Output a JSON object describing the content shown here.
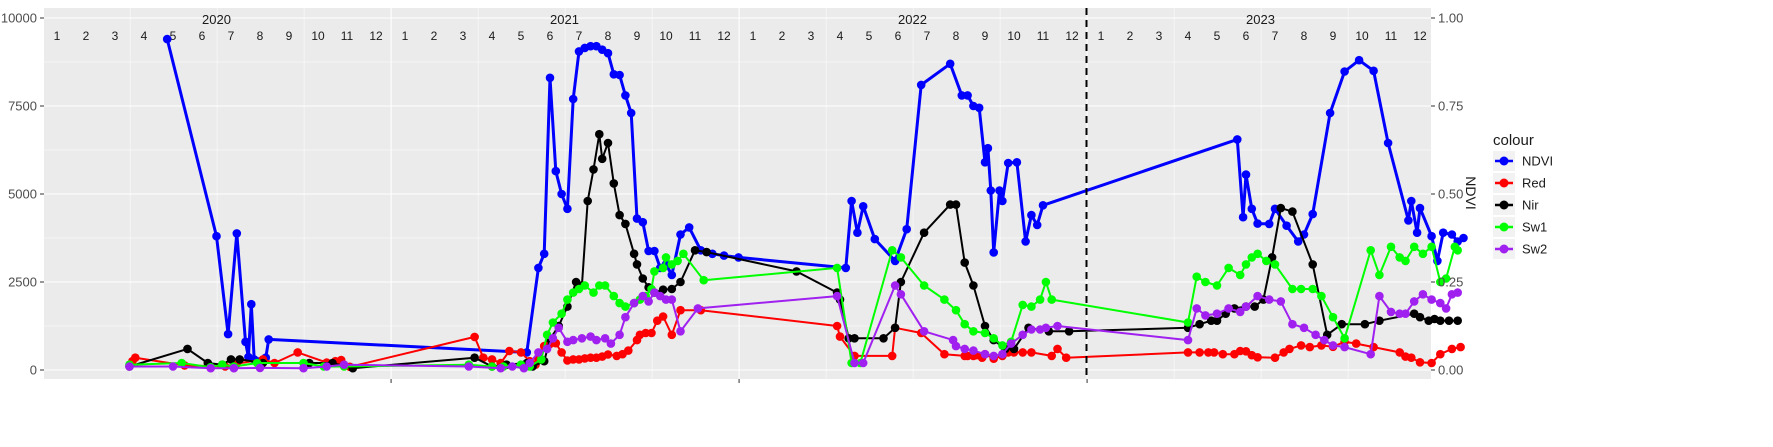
{
  "chart_data": {
    "type": "line",
    "title": "",
    "xlabel": "",
    "ylabel": "",
    "y2label": "NDVI",
    "ylim": [
      0,
      10000
    ],
    "y2lim": [
      0,
      1
    ],
    "yticks": [
      "0",
      "2500",
      "5000",
      "7500",
      "10000"
    ],
    "y2ticks": [
      "0.00",
      "0.25",
      "0.50",
      "0.75",
      "1.00"
    ],
    "grid": true,
    "legend_title": "colour",
    "legend_position": "right",
    "years": [
      "2020",
      "2021",
      "2022",
      "2023"
    ],
    "month_labels": [
      "1",
      "2",
      "3",
      "4",
      "5",
      "6",
      "7",
      "8",
      "9",
      "10",
      "11",
      "12"
    ],
    "vline_x": 36.0,
    "series": [
      {
        "name": "NDVI",
        "color": "#0000FF",
        "x": [
          4.8,
          6.5,
          6.9,
          7.2,
          7.5,
          7.6,
          7.7,
          7.8,
          8.2,
          8.3,
          17.2,
          17.6,
          17.8,
          18.0,
          18.2,
          18.4,
          18.6,
          18.8,
          19.0,
          19.2,
          19.4,
          19.6,
          19.8,
          20.0,
          20.2,
          20.4,
          20.6,
          20.8,
          21.0,
          21.2,
          21.4,
          21.6,
          21.8,
          22.0,
          22.2,
          22.5,
          22.8,
          23.2,
          23.6,
          24.0,
          24.5,
          28.2,
          28.4,
          28.6,
          28.8,
          29.2,
          29.9,
          30.3,
          30.8,
          31.8,
          32.2,
          32.4,
          32.6,
          32.8,
          33.0,
          33.1,
          33.2,
          33.3,
          33.5,
          33.6,
          33.8,
          34.1,
          34.4,
          34.6,
          34.8,
          35.0,
          41.7,
          41.9,
          42.0,
          42.2,
          42.4,
          42.8,
          43.0,
          43.4,
          43.8,
          44.0,
          44.3,
          44.9,
          45.4,
          45.9,
          46.4,
          46.9,
          47.6,
          47.7,
          47.9,
          48.0,
          48.4,
          48.6,
          48.8,
          49.1,
          49.3,
          49.5
        ],
        "values": [
          0.94,
          0.38,
          0.102,
          0.388,
          0.08,
          0.037,
          0.187,
          0.03,
          0.035,
          0.087,
          0.05,
          0.29,
          0.33,
          0.83,
          0.565,
          0.5,
          0.458,
          0.77,
          0.905,
          0.915,
          0.92,
          0.92,
          0.91,
          0.9,
          0.84,
          0.838,
          0.78,
          0.73,
          0.43,
          0.42,
          0.338,
          0.338,
          0.29,
          0.3,
          0.27,
          0.385,
          0.405,
          0.34,
          0.33,
          0.325,
          0.32,
          0.29,
          0.48,
          0.39,
          0.465,
          0.372,
          0.31,
          0.4,
          0.81,
          0.87,
          0.78,
          0.78,
          0.75,
          0.745,
          0.59,
          0.63,
          0.51,
          0.334,
          0.51,
          0.48,
          0.588,
          0.59,
          0.365,
          0.44,
          0.412,
          0.468,
          0.655,
          0.434,
          0.555,
          0.458,
          0.416,
          0.415,
          0.458,
          0.41,
          0.365,
          0.385,
          0.443,
          0.73,
          0.848,
          0.88,
          0.85,
          0.645,
          0.425,
          0.48,
          0.39,
          0.46,
          0.38,
          0.31,
          0.39,
          0.385,
          0.365,
          0.375
        ]
      },
      {
        "name": "Red",
        "color": "#FF0000",
        "x": [
          3.6,
          3.7,
          5.4,
          6.8,
          7.2,
          8.1,
          8.5,
          9.3,
          10.3,
          10.6,
          10.8,
          11.1,
          15.4,
          15.7,
          16.0,
          16.3,
          16.6,
          17.0,
          17.3,
          17.5,
          17.6,
          17.8,
          18.0,
          18.2,
          18.4,
          18.6,
          18.8,
          19.0,
          19.2,
          19.4,
          19.6,
          19.8,
          20.0,
          20.3,
          20.5,
          20.7,
          21.0,
          21.1,
          21.3,
          21.5,
          21.7,
          21.9,
          22.2,
          22.5,
          23.2,
          27.9,
          28.0,
          28.5,
          29.8,
          29.9,
          30.8,
          31.6,
          32.3,
          32.4,
          32.6,
          32.7,
          32.9,
          33.0,
          33.3,
          33.6,
          33.8,
          34.0,
          34.3,
          34.6,
          35.3,
          35.5,
          35.8,
          40.0,
          40.4,
          40.7,
          40.9,
          41.2,
          41.6,
          41.8,
          42.0,
          42.2,
          42.4,
          43.0,
          43.3,
          43.5,
          43.9,
          44.2,
          44.6,
          45.0,
          45.4,
          45.8,
          46.4,
          47.3,
          47.5,
          47.7,
          48.0,
          48.4,
          48.7,
          49.1,
          49.4
        ],
        "values": [
          0.025,
          0.035,
          0.013,
          0.01,
          0.018,
          0.03,
          0.02,
          0.05,
          0.021,
          0.025,
          0.028,
          0.009,
          0.094,
          0.035,
          0.03,
          0.02,
          0.054,
          0.05,
          0.025,
          0.015,
          0.03,
          0.068,
          0.074,
          0.076,
          0.05,
          0.027,
          0.03,
          0.03,
          0.033,
          0.035,
          0.035,
          0.038,
          0.044,
          0.04,
          0.045,
          0.055,
          0.085,
          0.1,
          0.105,
          0.105,
          0.14,
          0.152,
          0.1,
          0.17,
          0.17,
          0.125,
          0.095,
          0.04,
          0.04,
          0.12,
          0.105,
          0.045,
          0.04,
          0.04,
          0.04,
          0.042,
          0.035,
          0.045,
          0.032,
          0.04,
          0.05,
          0.05,
          0.05,
          0.05,
          0.04,
          0.06,
          0.035,
          0.05,
          0.05,
          0.05,
          0.05,
          0.045,
          0.045,
          0.054,
          0.053,
          0.042,
          0.036,
          0.035,
          0.05,
          0.06,
          0.07,
          0.065,
          0.07,
          0.066,
          0.08,
          0.075,
          0.065,
          0.05,
          0.038,
          0.035,
          0.022,
          0.02,
          0.045,
          0.06,
          0.065
        ]
      },
      {
        "name": "Nir",
        "color": "#000000",
        "x": [
          3.5,
          5.5,
          6.2,
          6.7,
          7.0,
          7.3,
          8.1,
          9.7,
          10.5,
          11.2,
          15.4,
          16.0,
          16.5,
          17.2,
          17.4,
          17.8,
          18.0,
          18.3,
          18.6,
          18.9,
          19.1,
          19.3,
          19.5,
          19.7,
          19.8,
          20.0,
          20.2,
          20.4,
          20.6,
          20.9,
          21.0,
          21.2,
          21.4,
          21.6,
          21.9,
          22.2,
          22.5,
          23.0,
          23.4,
          26.5,
          27.9,
          28.0,
          28.3,
          28.5,
          29.5,
          29.9,
          30.1,
          30.9,
          31.8,
          32.0,
          32.3,
          32.6,
          33.0,
          33.3,
          33.7,
          34.0,
          34.5,
          35.2,
          35.9,
          40.0,
          40.4,
          40.8,
          41.0,
          41.3,
          41.6,
          42.0,
          42.3,
          42.6,
          42.9,
          43.2,
          43.6,
          44.3,
          44.8,
          45.3,
          46.1,
          46.6,
          47.8,
          48.0,
          48.3,
          48.5,
          48.7,
          49.0,
          49.3
        ],
        "values": [
          0.01,
          0.06,
          0.02,
          0.015,
          0.03,
          0.03,
          0.02,
          0.02,
          0.02,
          0.005,
          0.035,
          0.01,
          0.015,
          0.02,
          0.01,
          0.025,
          0.088,
          0.125,
          0.18,
          0.25,
          0.24,
          0.48,
          0.57,
          0.67,
          0.6,
          0.645,
          0.53,
          0.44,
          0.415,
          0.33,
          0.3,
          0.26,
          0.235,
          0.22,
          0.228,
          0.23,
          0.25,
          0.34,
          0.335,
          0.28,
          0.22,
          0.2,
          0.09,
          0.09,
          0.09,
          0.12,
          0.25,
          0.39,
          0.47,
          0.47,
          0.305,
          0.24,
          0.125,
          0.085,
          0.06,
          0.06,
          0.12,
          0.11,
          0.11,
          0.12,
          0.13,
          0.14,
          0.14,
          0.16,
          0.175,
          0.18,
          0.18,
          0.2,
          0.32,
          0.46,
          0.45,
          0.3,
          0.1,
          0.13,
          0.13,
          0.14,
          0.16,
          0.15,
          0.14,
          0.145,
          0.14,
          0.14,
          0.14
        ],
        "omit_scatter": true
      },
      {
        "name": "Sw1",
        "color": "#00FF00",
        "x": [
          3.5,
          5.3,
          6.3,
          6.7,
          7.1,
          7.9,
          9.5,
          10.2,
          10.9,
          15.2,
          16.0,
          16.4,
          17.0,
          17.3,
          17.7,
          17.9,
          18.1,
          18.4,
          18.6,
          18.8,
          19.0,
          19.2,
          19.5,
          19.7,
          19.9,
          20.2,
          20.4,
          20.6,
          20.9,
          21.1,
          21.3,
          21.5,
          21.6,
          21.9,
          22.0,
          22.2,
          22.4,
          22.6,
          23.3,
          27.9,
          28.4,
          28.7,
          29.8,
          30.1,
          30.9,
          31.6,
          32.0,
          32.3,
          32.6,
          33.0,
          33.3,
          33.6,
          33.9,
          34.3,
          34.6,
          34.9,
          35.1,
          35.3,
          40.0,
          40.3,
          40.6,
          41.0,
          41.4,
          41.8,
          42.0,
          42.2,
          42.4,
          42.7,
          43.0,
          43.6,
          43.9,
          44.3,
          44.6,
          45.0,
          45.4,
          46.3,
          46.6,
          47.0,
          47.3,
          47.5,
          47.8,
          48.1,
          48.4,
          48.7,
          48.9,
          49.2,
          49.3
        ],
        "values": [
          0.015,
          0.02,
          0.008,
          0.015,
          0.01,
          0.02,
          0.02,
          0.01,
          0.01,
          0.015,
          0.01,
          0.01,
          0.015,
          0.01,
          0.03,
          0.1,
          0.135,
          0.16,
          0.2,
          0.22,
          0.23,
          0.24,
          0.22,
          0.24,
          0.24,
          0.21,
          0.19,
          0.18,
          0.19,
          0.2,
          0.21,
          0.23,
          0.28,
          0.29,
          0.32,
          0.3,
          0.31,
          0.33,
          0.255,
          0.29,
          0.02,
          0.02,
          0.34,
          0.32,
          0.24,
          0.2,
          0.17,
          0.13,
          0.11,
          0.105,
          0.09,
          0.07,
          0.08,
          0.185,
          0.18,
          0.2,
          0.25,
          0.2,
          0.135,
          0.265,
          0.25,
          0.24,
          0.29,
          0.27,
          0.3,
          0.32,
          0.33,
          0.31,
          0.3,
          0.23,
          0.23,
          0.23,
          0.21,
          0.15,
          0.09,
          0.34,
          0.27,
          0.35,
          0.32,
          0.31,
          0.35,
          0.33,
          0.35,
          0.25,
          0.26,
          0.35,
          0.34
        ],
        "omit_scatter": true
      },
      {
        "name": "Sw2",
        "color": "#A020F0",
        "x": [
          3.5,
          5.0,
          6.3,
          7.1,
          8.0,
          9.5,
          10.3,
          10.9,
          15.2,
          16.3,
          16.7,
          17.1,
          17.3,
          17.6,
          17.9,
          18.1,
          18.3,
          18.6,
          18.8,
          19.1,
          19.4,
          19.6,
          19.9,
          20.1,
          20.4,
          20.6,
          20.9,
          21.2,
          21.4,
          21.6,
          21.8,
          22.0,
          22.2,
          22.5,
          23.1,
          27.9,
          28.5,
          28.8,
          29.9,
          30.1,
          30.9,
          31.9,
          32.0,
          32.3,
          32.6,
          33.0,
          33.3,
          33.6,
          33.9,
          34.3,
          34.6,
          34.9,
          35.1,
          35.5,
          40.0,
          40.3,
          40.6,
          41.0,
          41.4,
          41.8,
          42.0,
          42.4,
          42.8,
          43.2,
          43.6,
          44.0,
          44.4,
          44.7,
          45.0,
          45.4,
          46.3,
          46.6,
          47.0,
          47.3,
          47.5,
          47.8,
          48.1,
          48.4,
          48.7,
          48.9,
          49.1,
          49.3
        ],
        "values": [
          0.01,
          0.01,
          0.005,
          0.005,
          0.006,
          0.005,
          0.01,
          0.015,
          0.01,
          0.005,
          0.01,
          0.005,
          0.02,
          0.05,
          0.06,
          0.09,
          0.12,
          0.08,
          0.085,
          0.09,
          0.095,
          0.085,
          0.09,
          0.075,
          0.1,
          0.15,
          0.19,
          0.21,
          0.195,
          0.22,
          0.21,
          0.2,
          0.2,
          0.11,
          0.175,
          0.21,
          0.02,
          0.02,
          0.24,
          0.215,
          0.11,
          0.085,
          0.068,
          0.06,
          0.055,
          0.045,
          0.04,
          0.045,
          0.075,
          0.1,
          0.115,
          0.115,
          0.12,
          0.125,
          0.085,
          0.175,
          0.155,
          0.16,
          0.175,
          0.165,
          0.18,
          0.21,
          0.2,
          0.195,
          0.13,
          0.12,
          0.1,
          0.085,
          0.07,
          0.065,
          0.045,
          0.21,
          0.165,
          0.16,
          0.16,
          0.195,
          0.215,
          0.2,
          0.19,
          0.175,
          0.215,
          0.22
        ]
      }
    ]
  }
}
